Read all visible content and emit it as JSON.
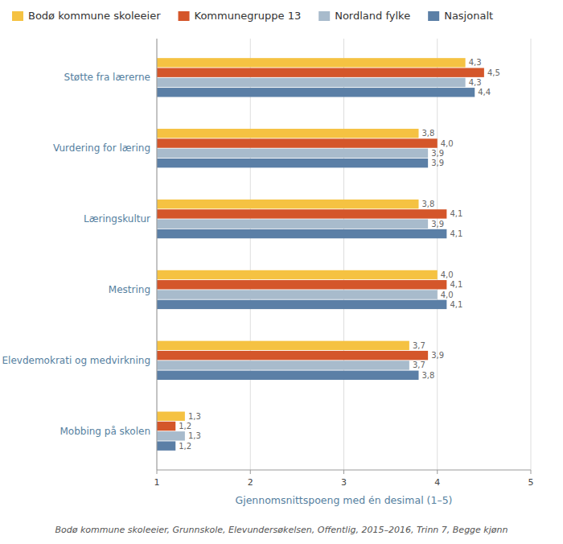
{
  "chart_data": {
    "type": "bar",
    "orientation": "horizontal",
    "categories": [
      "Støtte fra lærerne",
      "Vurdering for læring",
      "Læringskultur",
      "Mestring",
      "Elevdemokrati og medvirkning",
      "Mobbing på skolen"
    ],
    "series": [
      {
        "name": "Bodø kommune skoleeier",
        "color": "#F5C242",
        "values": [
          4.3,
          3.8,
          3.8,
          4.0,
          3.7,
          1.3
        ],
        "value_labels": [
          "4,3",
          "3,8",
          "3,8",
          "4,0",
          "3,7",
          "1,3"
        ]
      },
      {
        "name": "Kommunegruppe 13",
        "color": "#D4562A",
        "values": [
          4.5,
          4.0,
          4.1,
          4.1,
          3.9,
          1.2
        ],
        "value_labels": [
          "4,5",
          "4,0",
          "4,1",
          "4,1",
          "3,9",
          "1,2"
        ]
      },
      {
        "name": "Nordland fylke",
        "color": "#A8BBCC",
        "values": [
          4.3,
          3.9,
          3.9,
          4.0,
          3.7,
          1.3
        ],
        "value_labels": [
          "4,3",
          "3,9",
          "3,9",
          "4,0",
          "3,7",
          "1,3"
        ]
      },
      {
        "name": "Nasjonalt",
        "color": "#5B7FA6",
        "values": [
          4.4,
          3.9,
          4.1,
          4.1,
          3.8,
          1.2
        ],
        "value_labels": [
          "4,4",
          "3,9",
          "4,1",
          "4,1",
          "3,8",
          "1,2"
        ]
      }
    ],
    "xlabel": "Gjennomsnittspoeng med én desimal (1–5)",
    "xlim": [
      1,
      5
    ],
    "xticks": [
      1,
      2,
      3,
      4,
      5
    ],
    "grid": true,
    "legend": "top",
    "data_labels": true,
    "annotations": [
      "Bodø kommune skoleeier, Grunnskole, Elevundersøkelsen, Offentlig, 2015–2016, Trinn 7, Begge kjønn"
    ]
  }
}
